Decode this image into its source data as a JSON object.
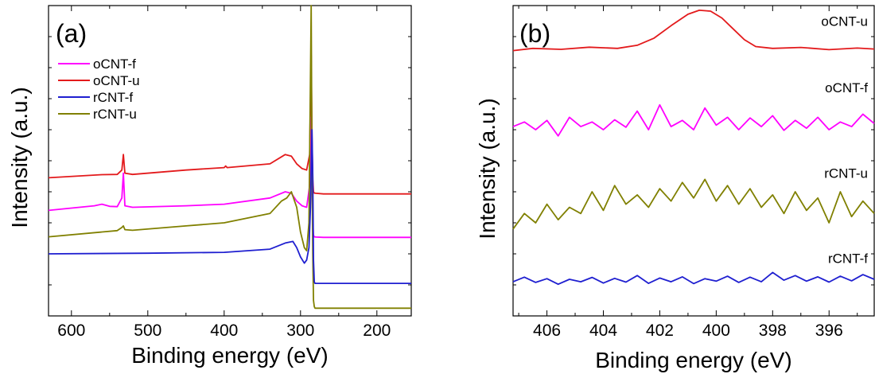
{
  "chart_data": [
    {
      "type": "line",
      "panel_label": "(a)",
      "xlabel": "Binding energy (eV)",
      "ylabel": "Intensity (a.u.)",
      "xlim": [
        630,
        155
      ],
      "x_reversed": true,
      "xticks": [
        600,
        500,
        400,
        300,
        200
      ],
      "ylim": [
        0,
        1
      ],
      "y_tick_labels_shown": false,
      "grid": false,
      "legend": {
        "position": "top-left",
        "entries": [
          {
            "name": "oCNT-f",
            "color": "#ff00ff"
          },
          {
            "name": "oCNT-u",
            "color": "#e31a1c"
          },
          {
            "name": "rCNT-f",
            "color": "#1f1fd0"
          },
          {
            "name": "rCNT-u",
            "color": "#808000"
          }
        ]
      },
      "series": [
        {
          "name": "oCNT-u",
          "color": "#e31a1c",
          "x": [
            630,
            560,
            540,
            534,
            532,
            530,
            520,
            450,
            400,
            398,
            396,
            340,
            320,
            312,
            305,
            298,
            292,
            288,
            286,
            285,
            284,
            283,
            282,
            280,
            270,
            155
          ],
          "y": [
            0.445,
            0.455,
            0.456,
            0.47,
            0.52,
            0.46,
            0.456,
            0.47,
            0.478,
            0.483,
            0.478,
            0.49,
            0.52,
            0.515,
            0.49,
            0.475,
            0.47,
            0.52,
            0.84,
            0.58,
            0.44,
            0.4,
            0.396,
            0.395,
            0.393,
            0.393
          ]
        },
        {
          "name": "oCNT-f",
          "color": "#ff00ff",
          "x": [
            630,
            570,
            560,
            550,
            540,
            534,
            532,
            530,
            520,
            450,
            400,
            340,
            320,
            312,
            305,
            298,
            292,
            288,
            286,
            285,
            284,
            283,
            282,
            280,
            270,
            155
          ],
          "y": [
            0.34,
            0.355,
            0.36,
            0.353,
            0.352,
            0.38,
            0.46,
            0.355,
            0.35,
            0.355,
            0.36,
            0.38,
            0.4,
            0.395,
            0.37,
            0.355,
            0.35,
            0.42,
            0.64,
            0.48,
            0.3,
            0.26,
            0.255,
            0.254,
            0.253,
            0.253
          ]
        },
        {
          "name": "rCNT-u",
          "color": "#808000",
          "x": [
            630,
            540,
            534,
            532,
            530,
            520,
            450,
            400,
            340,
            325,
            318,
            312,
            305,
            300,
            295,
            292,
            289,
            286,
            285,
            284,
            283,
            282,
            281,
            280,
            270,
            155
          ],
          "y": [
            0.255,
            0.275,
            0.285,
            0.29,
            0.278,
            0.276,
            0.29,
            0.3,
            0.33,
            0.37,
            0.38,
            0.4,
            0.35,
            0.27,
            0.22,
            0.21,
            0.3,
            1.0,
            0.5,
            0.2,
            0.05,
            0.03,
            0.025,
            0.025,
            0.025,
            0.025
          ]
        },
        {
          "name": "rCNT-f",
          "color": "#1f1fd0",
          "x": [
            630,
            500,
            400,
            340,
            320,
            310,
            305,
            300,
            295,
            292,
            289,
            287,
            285,
            284,
            283,
            282,
            281,
            280,
            270,
            155
          ],
          "y": [
            0.2,
            0.202,
            0.205,
            0.215,
            0.235,
            0.24,
            0.22,
            0.19,
            0.17,
            0.18,
            0.22,
            0.35,
            0.6,
            0.45,
            0.18,
            0.11,
            0.105,
            0.105,
            0.105,
            0.105
          ]
        }
      ]
    },
    {
      "type": "line",
      "panel_label": "(b)",
      "xlabel": "Binding energy (eV)",
      "ylabel": "Intensity (a.u.)",
      "xlim": [
        407.2,
        394.4
      ],
      "x_reversed": true,
      "xticks": [
        406,
        404,
        402,
        400,
        398,
        396
      ],
      "ylim": [
        0,
        1
      ],
      "y_tick_labels_shown": false,
      "grid": false,
      "series": [
        {
          "name": "oCNT-u",
          "color": "#e31a1c",
          "x": [
            407.2,
            406.5,
            405.5,
            404.5,
            403.5,
            402.8,
            402.2,
            401.6,
            401.0,
            400.6,
            400.2,
            399.8,
            399.4,
            399.0,
            398.6,
            398.0,
            397.0,
            396.0,
            395.0,
            394.4
          ],
          "y": [
            0.855,
            0.862,
            0.859,
            0.866,
            0.862,
            0.872,
            0.895,
            0.935,
            0.972,
            0.985,
            0.982,
            0.96,
            0.925,
            0.89,
            0.868,
            0.862,
            0.865,
            0.858,
            0.863,
            0.86
          ]
        },
        {
          "name": "oCNT-f",
          "color": "#ff00ff",
          "x": [
            407.2,
            406.8,
            406.4,
            406.0,
            405.6,
            405.2,
            404.8,
            404.4,
            404.0,
            403.6,
            403.2,
            402.8,
            402.4,
            402.0,
            401.6,
            401.2,
            400.8,
            400.4,
            400.0,
            399.6,
            399.2,
            398.8,
            398.4,
            398.0,
            397.6,
            397.2,
            396.8,
            396.4,
            396.0,
            395.6,
            395.2,
            394.8,
            394.4
          ],
          "y": [
            0.61,
            0.625,
            0.6,
            0.63,
            0.58,
            0.64,
            0.61,
            0.625,
            0.6,
            0.632,
            0.608,
            0.66,
            0.6,
            0.68,
            0.61,
            0.63,
            0.6,
            0.67,
            0.615,
            0.64,
            0.6,
            0.638,
            0.61,
            0.645,
            0.598,
            0.63,
            0.605,
            0.64,
            0.6,
            0.625,
            0.61,
            0.65,
            0.62
          ]
        },
        {
          "name": "rCNT-u",
          "color": "#808000",
          "x": [
            407.2,
            406.8,
            406.4,
            406.0,
            405.6,
            405.2,
            404.8,
            404.4,
            404.0,
            403.6,
            403.2,
            402.8,
            402.4,
            402.0,
            401.6,
            401.2,
            400.8,
            400.4,
            400.0,
            399.6,
            399.2,
            398.8,
            398.4,
            398.0,
            397.6,
            397.2,
            396.8,
            396.4,
            396.0,
            395.6,
            395.2,
            394.8,
            394.4
          ],
          "y": [
            0.28,
            0.33,
            0.3,
            0.36,
            0.31,
            0.35,
            0.33,
            0.4,
            0.34,
            0.42,
            0.36,
            0.39,
            0.35,
            0.41,
            0.37,
            0.43,
            0.38,
            0.44,
            0.37,
            0.42,
            0.36,
            0.41,
            0.35,
            0.39,
            0.33,
            0.4,
            0.34,
            0.38,
            0.3,
            0.4,
            0.32,
            0.37,
            0.33
          ]
        },
        {
          "name": "rCNT-f",
          "color": "#1f1fd0",
          "x": [
            407.2,
            406.8,
            406.4,
            406.0,
            405.6,
            405.2,
            404.8,
            404.4,
            404.0,
            403.6,
            403.2,
            402.8,
            402.4,
            402.0,
            401.6,
            401.2,
            400.8,
            400.4,
            400.0,
            399.6,
            399.2,
            398.8,
            398.4,
            398.0,
            397.6,
            397.2,
            396.8,
            396.4,
            396.0,
            395.6,
            395.2,
            394.8,
            394.4
          ],
          "y": [
            0.11,
            0.125,
            0.108,
            0.12,
            0.102,
            0.118,
            0.11,
            0.124,
            0.106,
            0.121,
            0.109,
            0.13,
            0.105,
            0.122,
            0.11,
            0.126,
            0.104,
            0.12,
            0.112,
            0.128,
            0.108,
            0.125,
            0.11,
            0.14,
            0.115,
            0.13,
            0.112,
            0.126,
            0.109,
            0.128,
            0.113,
            0.133,
            0.118
          ]
        }
      ]
    }
  ]
}
